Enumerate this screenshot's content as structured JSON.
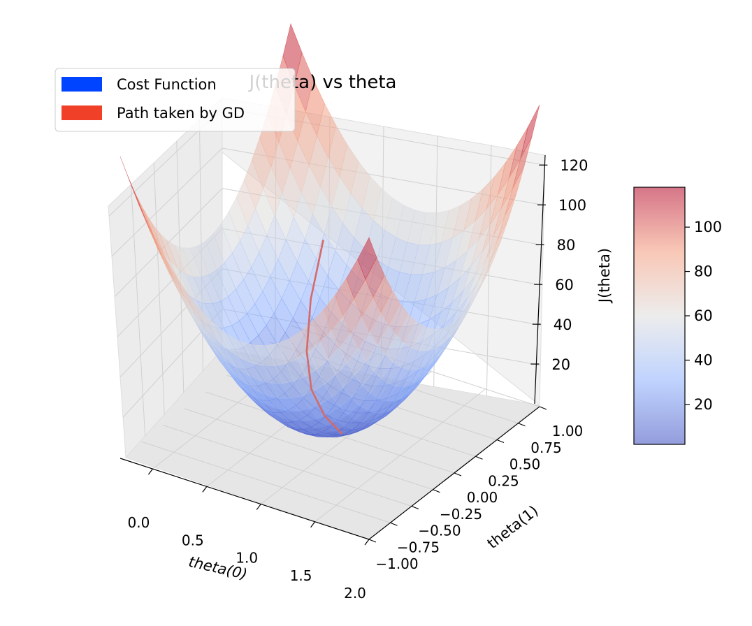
{
  "chart_data": {
    "type": "surface3d",
    "title": "J(theta) vs theta",
    "xlabel": "theta(0)",
    "ylabel": "theta(1)",
    "zlabel": "J(theta)",
    "xlim": [
      -0.3,
      2.0
    ],
    "ylim": [
      -1.0,
      1.0
    ],
    "zlim": [
      0,
      125
    ],
    "x_ticks": [
      "0.0",
      "0.5",
      "1.0",
      "1.5",
      "2.0"
    ],
    "y_ticks": [
      "−1.00",
      "−0.75",
      "−0.50",
      "−0.25",
      "0.00",
      "0.25",
      "0.50",
      "0.75",
      "1.00"
    ],
    "z_ticks": [
      "20",
      "40",
      "60",
      "80",
      "100",
      "120"
    ],
    "legend": {
      "placement": "top-left",
      "entries": [
        {
          "label": "Cost Function",
          "color": "#0044ff"
        },
        {
          "label": "Path taken by GD",
          "color": "#f04128"
        }
      ]
    },
    "colorbar": {
      "colormap": "coolwarm",
      "range": [
        2,
        118
      ],
      "ticks": [
        "20",
        "40",
        "60",
        "80",
        "100"
      ]
    },
    "surface": {
      "name": "Cost Function",
      "x_range": [
        -0.3,
        2.0
      ],
      "y_range": [
        -1.0,
        1.0
      ],
      "z_min": 2,
      "z_max": 118
    },
    "gd_path": {
      "name": "Path taken by GD",
      "color": "#d46a6a",
      "x": [
        0.0,
        0.2,
        0.4,
        0.6,
        0.8,
        1.0
      ],
      "y": [
        1.0,
        0.6,
        0.3,
        0.1,
        0.0,
        -0.05
      ],
      "z": [
        38,
        28,
        18,
        11,
        6,
        3
      ]
    },
    "grid": true
  }
}
